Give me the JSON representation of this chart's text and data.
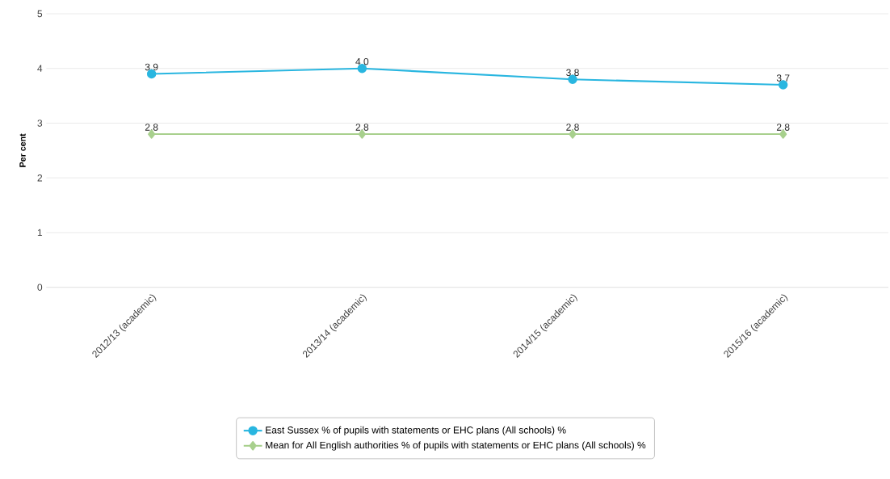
{
  "chart_data": {
    "type": "line",
    "ylabel": "Per cent",
    "categories": [
      "2012/13 (academic)",
      "2013/14 (academic)",
      "2014/15 (academic)",
      "2015/16 (academic)"
    ],
    "series": [
      {
        "name": "East Sussex % of pupils with statements or EHC plans (All schools) %",
        "color": "#29b6e0",
        "marker": "circle",
        "values": [
          3.9,
          4.0,
          3.8,
          3.7
        ],
        "value_labels": [
          "3.9",
          "4.0",
          "3.8",
          "3.7"
        ]
      },
      {
        "name": "Mean for All English authorities % of pupils with statements or EHC plans (All schools) %",
        "color": "#a8d08d",
        "marker": "diamond",
        "values": [
          2.8,
          2.8,
          2.8,
          2.8
        ],
        "value_labels": [
          "2.8",
          "2.8",
          "2.8",
          "2.8"
        ]
      }
    ],
    "ylim": [
      0,
      5
    ],
    "yticks": [
      0,
      1,
      2,
      3,
      4,
      5
    ],
    "grid": "y",
    "legend": "bottom",
    "line_style": "solid"
  }
}
